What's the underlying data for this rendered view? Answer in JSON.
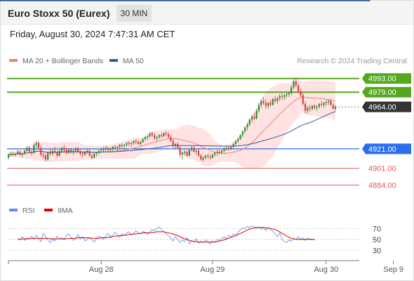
{
  "header": {
    "title": "Euro Stoxx 50 (Eurex)",
    "timeframe": "30 MIN",
    "timestamp": "Friday, August 30, 2024 7:47:31 AM CET"
  },
  "colors": {
    "ma20": "#f08080",
    "ma50": "#2e5d9e",
    "bands_fill": "#ffd8d8",
    "bull": "#2e8b2e",
    "bear": "#d43c3c",
    "resistance": "#55a81e",
    "pivot": "#2a6ef0",
    "support": "#e05a5a",
    "arrow": "#2e5d9e",
    "rsi": "#5d8ee8",
    "rsi_ma": "#e00000",
    "current_price_tag": "#333333"
  },
  "chart_data": [
    {
      "type": "candlestick",
      "title": "",
      "legend": [
        {
          "name": "MA 20 + Bollinger Bands",
          "color": "#f08080"
        },
        {
          "name": "MA 50",
          "color": "#2e5d9e"
        }
      ],
      "credit": "Research © 2024 Trading Central",
      "price_range": [
        4872,
        5000
      ],
      "price_levels": [
        {
          "value": 4993,
          "label": "4993.00",
          "kind": "resistance"
        },
        {
          "value": 4979,
          "label": "4979.00",
          "kind": "resistance"
        },
        {
          "value": 4964,
          "label": "4964.00",
          "kind": "current"
        },
        {
          "value": 4921,
          "label": "4921.00",
          "kind": "pivot"
        },
        {
          "value": 4901,
          "label": "4901.00",
          "kind": "support"
        },
        {
          "value": 4884,
          "label": "4884.00",
          "kind": "support"
        }
      ],
      "x_ticks": [
        "Aug 28",
        "Aug 29",
        "Aug 30",
        "Sep 9"
      ],
      "x_tick_bars": [
        40,
        88,
        137,
        166
      ],
      "projection_start_bar": 156,
      "candles": [
        [
          4912,
          4916,
          4910,
          4915
        ],
        [
          4915,
          4918,
          4913,
          4916
        ],
        [
          4916,
          4918,
          4914,
          4915
        ],
        [
          4915,
          4917,
          4913,
          4916
        ],
        [
          4916,
          4920,
          4915,
          4918
        ],
        [
          4918,
          4919,
          4914,
          4915
        ],
        [
          4915,
          4917,
          4912,
          4916
        ],
        [
          4916,
          4920,
          4915,
          4919
        ],
        [
          4919,
          4924,
          4918,
          4922
        ],
        [
          4922,
          4924,
          4917,
          4918
        ],
        [
          4918,
          4920,
          4914,
          4917
        ],
        [
          4917,
          4927,
          4916,
          4925
        ],
        [
          4925,
          4929,
          4922,
          4927
        ],
        [
          4927,
          4929,
          4920,
          4922
        ],
        [
          4922,
          4924,
          4913,
          4915
        ],
        [
          4915,
          4917,
          4911,
          4914
        ],
        [
          4914,
          4916,
          4908,
          4910
        ],
        [
          4910,
          4918,
          4909,
          4917
        ],
        [
          4917,
          4921,
          4914,
          4916
        ],
        [
          4916,
          4920,
          4914,
          4919
        ],
        [
          4919,
          4923,
          4916,
          4917
        ],
        [
          4917,
          4919,
          4912,
          4914
        ],
        [
          4914,
          4920,
          4913,
          4919
        ],
        [
          4919,
          4923,
          4917,
          4922
        ],
        [
          4922,
          4925,
          4918,
          4920
        ],
        [
          4920,
          4922,
          4915,
          4917
        ],
        [
          4917,
          4921,
          4916,
          4920
        ],
        [
          4920,
          4922,
          4916,
          4918
        ],
        [
          4918,
          4920,
          4915,
          4919
        ],
        [
          4919,
          4923,
          4917,
          4921
        ],
        [
          4921,
          4923,
          4917,
          4918
        ],
        [
          4918,
          4920,
          4914,
          4916
        ],
        [
          4916,
          4918,
          4912,
          4915
        ],
        [
          4915,
          4919,
          4914,
          4918
        ],
        [
          4918,
          4921,
          4916,
          4919
        ],
        [
          4919,
          4920,
          4913,
          4914
        ],
        [
          4914,
          4916,
          4910,
          4912
        ],
        [
          4912,
          4917,
          4911,
          4916
        ],
        [
          4916,
          4918,
          4913,
          4917
        ],
        [
          4917,
          4920,
          4915,
          4919
        ],
        [
          4919,
          4922,
          4917,
          4920
        ],
        [
          4920,
          4923,
          4918,
          4921
        ],
        [
          4921,
          4924,
          4919,
          4922
        ],
        [
          4922,
          4923,
          4918,
          4920
        ],
        [
          4920,
          4922,
          4917,
          4921
        ],
        [
          4921,
          4924,
          4919,
          4923
        ],
        [
          4923,
          4925,
          4920,
          4922
        ],
        [
          4922,
          4924,
          4919,
          4923
        ],
        [
          4923,
          4926,
          4921,
          4925
        ],
        [
          4925,
          4927,
          4922,
          4924
        ],
        [
          4924,
          4926,
          4921,
          4925
        ],
        [
          4925,
          4928,
          4923,
          4927
        ],
        [
          4927,
          4929,
          4924,
          4926
        ],
        [
          4926,
          4928,
          4923,
          4927
        ],
        [
          4927,
          4930,
          4925,
          4929
        ],
        [
          4929,
          4931,
          4926,
          4928
        ],
        [
          4928,
          4930,
          4925,
          4926
        ],
        [
          4926,
          4929,
          4924,
          4928
        ],
        [
          4928,
          4932,
          4927,
          4931
        ],
        [
          4931,
          4934,
          4929,
          4933
        ],
        [
          4933,
          4935,
          4930,
          4934
        ],
        [
          4934,
          4938,
          4932,
          4937
        ],
        [
          4937,
          4939,
          4933,
          4935
        ],
        [
          4935,
          4937,
          4930,
          4932
        ],
        [
          4932,
          4934,
          4929,
          4933
        ],
        [
          4933,
          4936,
          4931,
          4935
        ],
        [
          4935,
          4937,
          4932,
          4934
        ],
        [
          4934,
          4938,
          4933,
          4937
        ],
        [
          4937,
          4939,
          4934,
          4936
        ],
        [
          4936,
          4938,
          4932,
          4933
        ],
        [
          4933,
          4935,
          4928,
          4929
        ],
        [
          4929,
          4931,
          4922,
          4924
        ],
        [
          4924,
          4927,
          4920,
          4926
        ],
        [
          4926,
          4928,
          4921,
          4922
        ],
        [
          4922,
          4924,
          4912,
          4915
        ],
        [
          4915,
          4918,
          4910,
          4917
        ],
        [
          4917,
          4920,
          4914,
          4918
        ],
        [
          4918,
          4919,
          4913,
          4914
        ],
        [
          4914,
          4921,
          4913,
          4920
        ],
        [
          4920,
          4924,
          4918,
          4922
        ],
        [
          4922,
          4924,
          4917,
          4918
        ],
        [
          4918,
          4920,
          4915,
          4919
        ],
        [
          4919,
          4921,
          4913,
          4914
        ],
        [
          4914,
          4916,
          4909,
          4910
        ],
        [
          4910,
          4913,
          4908,
          4912
        ],
        [
          4912,
          4915,
          4910,
          4914
        ],
        [
          4914,
          4916,
          4911,
          4913
        ],
        [
          4913,
          4915,
          4910,
          4912
        ],
        [
          4912,
          4916,
          4911,
          4915
        ],
        [
          4915,
          4918,
          4913,
          4917
        ],
        [
          4917,
          4920,
          4914,
          4918
        ],
        [
          4918,
          4920,
          4915,
          4917
        ],
        [
          4917,
          4920,
          4916,
          4919
        ],
        [
          4919,
          4922,
          4917,
          4921
        ],
        [
          4921,
          4923,
          4919,
          4922
        ],
        [
          4922,
          4924,
          4919,
          4921
        ],
        [
          4921,
          4924,
          4920,
          4923
        ],
        [
          4923,
          4927,
          4922,
          4926
        ],
        [
          4926,
          4930,
          4924,
          4929
        ],
        [
          4929,
          4933,
          4927,
          4931
        ],
        [
          4931,
          4936,
          4930,
          4935
        ],
        [
          4935,
          4940,
          4933,
          4939
        ],
        [
          4939,
          4944,
          4937,
          4943
        ],
        [
          4943,
          4948,
          4940,
          4946
        ],
        [
          4946,
          4952,
          4944,
          4951
        ],
        [
          4951,
          4956,
          4948,
          4954
        ],
        [
          4954,
          4958,
          4950,
          4952
        ],
        [
          4952,
          4962,
          4951,
          4960
        ],
        [
          4960,
          4968,
          4958,
          4966
        ],
        [
          4966,
          4972,
          4963,
          4970
        ],
        [
          4970,
          4974,
          4966,
          4968
        ],
        [
          4968,
          4972,
          4962,
          4965
        ],
        [
          4965,
          4969,
          4962,
          4968
        ],
        [
          4968,
          4971,
          4964,
          4966
        ],
        [
          4966,
          4973,
          4965,
          4972
        ],
        [
          4972,
          4975,
          4968,
          4970
        ],
        [
          4970,
          4974,
          4967,
          4973
        ],
        [
          4973,
          4977,
          4970,
          4975
        ],
        [
          4975,
          4978,
          4971,
          4974
        ],
        [
          4974,
          4977,
          4971,
          4976
        ],
        [
          4976,
          4979,
          4973,
          4977
        ],
        [
          4977,
          4980,
          4974,
          4978
        ],
        [
          4978,
          4986,
          4976,
          4984
        ],
        [
          4984,
          4992,
          4982,
          4990
        ],
        [
          4990,
          4994,
          4984,
          4986
        ],
        [
          4986,
          4988,
          4978,
          4980
        ],
        [
          4980,
          4983,
          4974,
          4976
        ],
        [
          4976,
          4978,
          4965,
          4967
        ],
        [
          4967,
          4970,
          4957,
          4960
        ],
        [
          4960,
          4965,
          4957,
          4963
        ],
        [
          4963,
          4966,
          4959,
          4962
        ],
        [
          4962,
          4966,
          4960,
          4965
        ],
        [
          4965,
          4967,
          4961,
          4963
        ],
        [
          4963,
          4966,
          4960,
          4964
        ],
        [
          4964,
          4968,
          4962,
          4967
        ],
        [
          4967,
          4970,
          4964,
          4966
        ],
        [
          4966,
          4969,
          4963,
          4968
        ],
        [
          4968,
          4971,
          4965,
          4969
        ],
        [
          4969,
          4972,
          4966,
          4970
        ],
        [
          4970,
          4972,
          4965,
          4966
        ],
        [
          4966,
          4968,
          4961,
          4962
        ],
        [
          4962,
          4966,
          4960,
          4964
        ]
      ]
    },
    {
      "type": "line",
      "title": "",
      "legend": [
        {
          "name": "RSI",
          "color": "#5d8ee8"
        },
        {
          "name": "9MA",
          "color": "#e00000"
        }
      ],
      "y_ticks": [
        70,
        50,
        30
      ],
      "ylim": [
        20,
        82
      ],
      "rsi_x_offset": 4,
      "rsi": [
        52,
        49,
        55,
        48,
        53,
        51,
        56,
        50,
        58,
        52,
        46,
        61,
        55,
        49,
        44,
        50,
        47,
        56,
        51,
        53,
        49,
        57,
        60,
        54,
        48,
        52,
        59,
        51,
        55,
        47,
        50,
        53,
        49,
        45,
        52,
        56,
        54,
        50,
        57,
        61,
        55,
        58,
        63,
        59,
        54,
        60,
        57,
        62,
        64,
        58,
        61,
        66,
        62,
        60,
        65,
        63,
        59,
        64,
        68,
        66,
        70,
        73,
        68,
        64,
        60,
        57,
        52,
        47,
        55,
        50,
        44,
        49,
        46,
        53,
        42,
        48,
        45,
        51,
        43,
        47,
        44,
        49,
        46,
        42,
        47,
        45,
        50,
        48,
        52,
        55,
        51,
        58,
        54,
        60,
        57,
        63,
        67,
        71,
        70,
        74,
        72,
        75,
        73,
        70,
        73,
        69,
        71,
        66,
        72,
        68,
        65,
        60,
        55,
        62,
        50,
        46,
        44,
        49,
        47,
        52,
        50,
        55,
        49,
        53,
        48,
        52,
        51,
        50,
        49
      ],
      "rsi_ma": [
        50,
        50,
        51,
        51,
        51,
        51,
        52,
        52,
        52,
        52,
        52,
        52,
        52,
        52,
        51,
        51,
        51,
        51,
        51,
        51,
        51,
        51,
        52,
        52,
        52,
        52,
        53,
        53,
        53,
        53,
        53,
        53,
        52,
        52,
        52,
        52,
        53,
        53,
        53,
        54,
        54,
        55,
        56,
        56,
        57,
        57,
        58,
        58,
        59,
        59,
        60,
        60,
        61,
        61,
        62,
        62,
        62,
        62,
        63,
        63,
        64,
        64,
        64,
        64,
        63,
        62,
        61,
        60,
        58,
        57,
        55,
        53,
        51,
        50,
        48,
        47,
        46,
        46,
        45,
        45,
        45,
        45,
        45,
        45,
        45,
        45,
        46,
        47,
        48,
        49,
        51,
        52,
        54,
        55,
        57,
        59,
        61,
        63,
        65,
        67,
        69,
        70,
        71,
        72,
        72,
        72,
        72,
        71,
        71,
        70,
        69,
        68,
        66,
        64,
        61,
        59,
        56,
        54,
        52,
        51,
        50,
        50,
        50,
        50,
        50,
        50,
        50,
        50,
        50
      ]
    }
  ]
}
